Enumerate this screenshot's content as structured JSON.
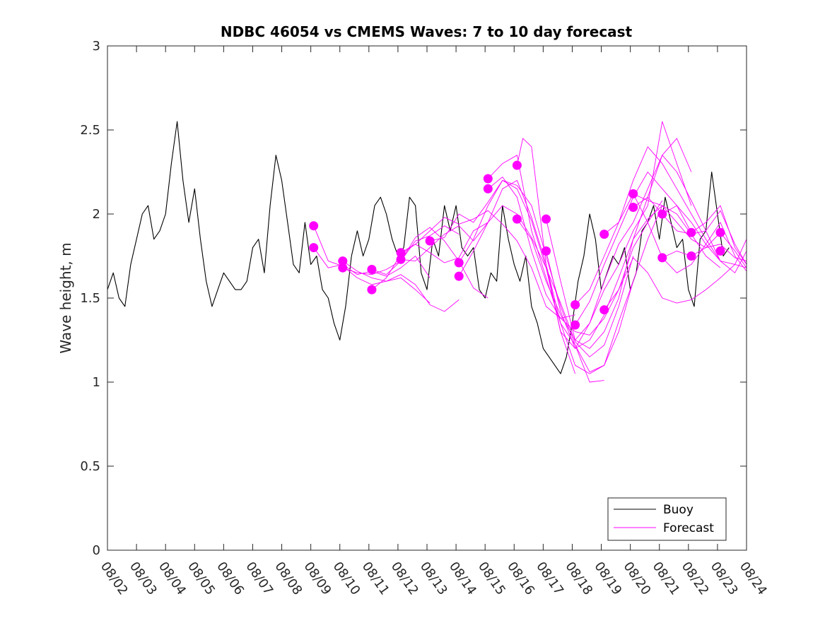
{
  "chart_data": {
    "type": "line",
    "title": "NDBC 46054 vs CMEMS Waves: 7 to 10 day forecast",
    "xlabel": "",
    "ylabel": "Wave height, m",
    "x_unit": "days since 08/02",
    "xlim": [
      0,
      22
    ],
    "ylim": [
      0,
      3
    ],
    "xticks": [
      0,
      1,
      2,
      3,
      4,
      5,
      6,
      7,
      8,
      9,
      10,
      11,
      12,
      13,
      14,
      15,
      16,
      17,
      18,
      19,
      20,
      21,
      22
    ],
    "xtick_labels": [
      "08/02",
      "08/03",
      "08/04",
      "08/05",
      "08/06",
      "08/07",
      "08/08",
      "08/09",
      "08/10",
      "08/11",
      "08/12",
      "08/13",
      "08/14",
      "08/15",
      "08/16",
      "08/17",
      "08/18",
      "08/19",
      "08/20",
      "08/21",
      "08/22",
      "08/23",
      "08/24"
    ],
    "yticks": [
      0,
      0.5,
      1,
      1.5,
      2,
      2.5,
      3
    ],
    "ytick_labels": [
      "0",
      "0.5",
      "1",
      "1.5",
      "2",
      "2.5",
      "3"
    ],
    "grid": false,
    "legend_position": "bottom-right",
    "legend": [
      {
        "name": "Buoy",
        "color": "#000000"
      },
      {
        "name": "Forecast",
        "color": "#ff00ff"
      }
    ],
    "series": [
      {
        "name": "Buoy",
        "color": "#000000",
        "x": [
          0,
          0.2,
          0.4,
          0.6,
          0.8,
          1.0,
          1.2,
          1.4,
          1.6,
          1.8,
          2.0,
          2.2,
          2.4,
          2.6,
          2.8,
          3.0,
          3.2,
          3.4,
          3.6,
          3.8,
          4.0,
          4.2,
          4.4,
          4.6,
          4.8,
          5.0,
          5.2,
          5.4,
          5.6,
          5.8,
          6.0,
          6.2,
          6.4,
          6.6,
          6.8,
          7.0,
          7.2,
          7.4,
          7.6,
          7.8,
          8.0,
          8.2,
          8.4,
          8.6,
          8.8,
          9.0,
          9.2,
          9.4,
          9.6,
          9.8,
          10.0,
          10.2,
          10.4,
          10.6,
          10.8,
          11.0,
          11.2,
          11.4,
          11.6,
          11.8,
          12.0,
          12.2,
          12.4,
          12.6,
          12.8,
          13.0,
          13.2,
          13.4,
          13.6,
          13.8,
          14.0,
          14.2,
          14.4,
          14.6,
          14.8,
          15.0,
          15.2,
          15.4,
          15.6,
          15.8,
          16.0,
          16.2,
          16.4,
          16.6,
          16.8,
          17.0,
          17.2,
          17.4,
          17.6,
          17.8,
          18.0,
          18.2,
          18.4,
          18.6,
          18.8,
          19.0,
          19.2,
          19.4,
          19.6,
          19.8,
          20.0,
          20.2,
          20.4,
          20.6,
          20.8,
          21.0,
          21.2,
          21.4
        ],
        "y": [
          1.55,
          1.65,
          1.5,
          1.45,
          1.7,
          1.85,
          2.0,
          2.05,
          1.85,
          1.9,
          2.0,
          2.3,
          2.55,
          2.2,
          1.95,
          2.15,
          1.85,
          1.6,
          1.45,
          1.55,
          1.65,
          1.6,
          1.55,
          1.55,
          1.6,
          1.8,
          1.85,
          1.65,
          2.05,
          2.35,
          2.2,
          1.95,
          1.7,
          1.65,
          1.95,
          1.7,
          1.75,
          1.55,
          1.5,
          1.35,
          1.25,
          1.45,
          1.75,
          1.9,
          1.75,
          1.85,
          2.05,
          2.1,
          2.0,
          1.85,
          1.75,
          1.8,
          2.1,
          2.05,
          1.65,
          1.55,
          1.85,
          1.75,
          2.05,
          1.9,
          2.05,
          1.8,
          1.75,
          1.8,
          1.55,
          1.5,
          1.65,
          1.6,
          2.05,
          1.85,
          1.7,
          1.6,
          1.75,
          1.45,
          1.35,
          1.2,
          1.15,
          1.1,
          1.05,
          1.15,
          1.35,
          1.6,
          1.75,
          2.0,
          1.85,
          1.55,
          1.65,
          1.75,
          1.7,
          1.8,
          1.55,
          1.65,
          1.9,
          1.95,
          2.05,
          1.85,
          2.1,
          1.95,
          1.8,
          1.85,
          1.55,
          1.45,
          1.85,
          1.9,
          2.25,
          2.0,
          1.75,
          1.8
        ]
      },
      {
        "name": "Forecast",
        "color": "#ff00ff",
        "x": [
          7.1,
          7.6,
          8.1,
          8.6,
          9.1,
          9.6,
          10.1,
          10.6,
          11.1
        ],
        "y": [
          1.93,
          1.72,
          1.69,
          1.62,
          1.58,
          1.6,
          1.62,
          1.55,
          1.47
        ]
      },
      {
        "name": "Forecast",
        "color": "#ff00ff",
        "x": [
          7.1,
          7.6,
          8.1,
          8.6,
          9.1,
          9.6,
          10.1,
          10.6,
          11.1
        ],
        "y": [
          1.8,
          1.68,
          1.7,
          1.64,
          1.66,
          1.63,
          1.68,
          1.75,
          1.62
        ]
      },
      {
        "name": "Forecast",
        "color": "#ff00ff",
        "x": [
          8.1,
          8.6,
          9.1,
          9.6,
          10.1,
          10.6,
          11.1,
          11.6,
          12.1
        ],
        "y": [
          1.72,
          1.66,
          1.62,
          1.6,
          1.64,
          1.58,
          1.46,
          1.42,
          1.49
        ]
      },
      {
        "name": "Forecast",
        "color": "#ff00ff",
        "x": [
          8.1,
          8.6,
          9.1,
          9.6,
          10.1,
          10.6,
          11.1,
          11.6,
          12.1
        ],
        "y": [
          1.68,
          1.65,
          1.64,
          1.67,
          1.72,
          1.84,
          1.87,
          1.93,
          1.88
        ]
      },
      {
        "name": "Forecast",
        "color": "#ff00ff",
        "x": [
          9.1,
          9.6,
          10.1,
          10.6,
          11.1,
          11.6,
          12.1,
          12.6,
          13.1
        ],
        "y": [
          1.67,
          1.64,
          1.72,
          1.86,
          1.92,
          1.84,
          1.72,
          1.56,
          1.5
        ]
      },
      {
        "name": "Forecast",
        "color": "#ff00ff",
        "x": [
          9.1,
          9.6,
          10.1,
          10.6,
          11.1,
          11.6,
          12.1,
          12.6,
          13.1
        ],
        "y": [
          1.55,
          1.62,
          1.76,
          1.82,
          1.77,
          1.71,
          1.74,
          1.9,
          1.95
        ]
      },
      {
        "name": "Forecast",
        "color": "#ff00ff",
        "x": [
          10.1,
          10.6,
          11.1,
          11.6,
          12.1,
          12.6,
          13.1,
          13.6,
          14.1,
          14.6,
          15.1,
          15.6,
          16.1
        ],
        "y": [
          1.77,
          1.82,
          1.9,
          1.98,
          1.94,
          1.97,
          2.02,
          1.94,
          1.84,
          1.68,
          1.45,
          1.38,
          1.4
        ]
      },
      {
        "name": "Forecast",
        "color": "#ff00ff",
        "x": [
          10.1,
          10.6,
          11.1,
          11.6,
          12.1,
          12.6,
          13.1,
          13.6,
          14.1,
          14.6,
          15.1,
          15.6,
          16.1
        ],
        "y": [
          1.73,
          1.72,
          1.8,
          1.88,
          1.93,
          1.84,
          1.95,
          2.05,
          2.0,
          1.86,
          1.68,
          1.3,
          1.05
        ]
      },
      {
        "name": "Forecast",
        "color": "#ff00ff",
        "x": [
          11.1,
          11.6,
          12.1,
          12.6,
          13.1,
          13.6,
          14.1,
          14.6,
          15.1,
          15.6,
          16.1,
          16.6,
          17.1
        ],
        "y": [
          1.84,
          1.86,
          2.0,
          1.95,
          2.07,
          2.2,
          2.17,
          2.05,
          1.75,
          1.45,
          1.22,
          1.0,
          1.01
        ]
      },
      {
        "name": "Forecast",
        "color": "#ff00ff",
        "x": [
          12.1,
          12.6,
          13.1,
          13.6,
          14.1,
          14.6,
          15.1,
          15.6,
          16.1,
          16.6,
          17.1,
          17.6,
          18.1
        ],
        "y": [
          1.63,
          1.78,
          1.95,
          2.15,
          2.2,
          1.98,
          1.7,
          1.35,
          1.1,
          1.05,
          1.1,
          1.3,
          1.6
        ]
      },
      {
        "name": "Forecast",
        "color": "#ff00ff",
        "x": [
          12.1,
          12.6,
          13.1,
          13.6,
          14.1,
          14.6,
          15.1,
          15.6,
          16.1,
          16.6,
          17.1,
          17.6,
          18.1
        ],
        "y": [
          1.71,
          1.85,
          2.05,
          2.2,
          2.15,
          1.96,
          1.68,
          1.47,
          1.24,
          1.15,
          1.22,
          1.45,
          1.75
        ]
      },
      {
        "name": "Forecast",
        "color": "#ff00ff",
        "x": [
          13.1,
          13.6,
          14.1,
          14.6,
          15.1,
          15.6,
          16.1,
          16.6,
          17.1,
          17.6,
          18.1,
          18.6,
          19.1
        ],
        "y": [
          2.21,
          2.3,
          2.35,
          1.9,
          1.62,
          1.35,
          1.22,
          1.06,
          1.1,
          1.36,
          1.6,
          1.85,
          2.05
        ]
      },
      {
        "name": "Forecast",
        "color": "#ff00ff",
        "x": [
          13.1,
          13.6,
          14.1,
          14.6,
          15.1,
          15.6,
          16.1,
          16.6,
          17.1,
          17.6,
          18.1,
          18.6,
          19.1
        ],
        "y": [
          2.15,
          2.22,
          2.1,
          1.78,
          1.52,
          1.38,
          1.3,
          1.28,
          1.38,
          1.55,
          1.8,
          1.95,
          2.08
        ]
      },
      {
        "name": "Forecast",
        "color": "#ff00ff",
        "x": [
          14.1,
          14.3,
          14.6,
          15.1,
          15.6,
          16.1,
          16.6,
          17.1,
          17.6,
          18.1,
          18.6,
          19.1,
          19.6,
          20.1
        ],
        "y": [
          2.29,
          2.45,
          2.4,
          1.7,
          1.3,
          1.2,
          1.35,
          1.6,
          1.82,
          1.95,
          2.15,
          2.35,
          2.45,
          2.25
        ]
      },
      {
        "name": "Forecast",
        "color": "#ff00ff",
        "x": [
          14.1,
          14.6,
          15.1,
          15.6,
          16.1,
          16.6,
          17.1,
          17.6,
          18.1,
          18.6,
          19.1,
          19.6,
          20.1
        ],
        "y": [
          1.97,
          1.85,
          1.6,
          1.4,
          1.25,
          1.35,
          1.55,
          1.7,
          1.9,
          2.05,
          2.55,
          2.3,
          2.05
        ]
      },
      {
        "name": "Forecast",
        "color": "#ff00ff",
        "x": [
          15.1,
          15.6,
          16.1,
          16.6,
          17.1,
          17.6,
          18.1,
          18.6,
          19.1,
          19.6,
          20.1,
          20.6,
          21.1
        ],
        "y": [
          1.97,
          1.6,
          1.25,
          1.2,
          1.3,
          1.5,
          1.85,
          2.1,
          2.35,
          2.25,
          2.08,
          1.9,
          1.72
        ]
      },
      {
        "name": "Forecast",
        "color": "#ff00ff",
        "x": [
          15.1,
          15.6,
          16.1,
          16.6,
          17.1,
          17.6,
          18.1,
          18.6,
          19.1,
          19.6,
          20.1,
          20.6,
          21.1
        ],
        "y": [
          1.78,
          1.42,
          1.2,
          1.25,
          1.4,
          1.62,
          1.85,
          1.97,
          2.05,
          2.0,
          1.88,
          1.75,
          1.68
        ]
      },
      {
        "name": "Forecast",
        "color": "#ff00ff",
        "x": [
          16.1,
          16.6,
          17.1,
          17.6,
          18.1,
          18.6,
          19.1,
          19.6,
          20.1,
          20.6,
          21.1,
          21.6,
          22.0
        ],
        "y": [
          1.46,
          1.55,
          1.75,
          1.95,
          2.2,
          2.4,
          2.3,
          2.15,
          2.0,
          1.85,
          1.72,
          1.65,
          1.78
        ]
      },
      {
        "name": "Forecast",
        "color": "#ff00ff",
        "x": [
          16.1,
          16.6,
          17.1,
          17.6,
          18.1,
          18.6,
          19.1,
          19.6,
          20.1,
          20.6,
          21.1,
          21.6,
          22.0
        ],
        "y": [
          1.34,
          1.48,
          1.7,
          1.9,
          2.1,
          2.25,
          2.15,
          2.05,
          1.95,
          1.82,
          1.72,
          1.7,
          1.85
        ]
      },
      {
        "name": "Forecast",
        "color": "#ff00ff",
        "x": [
          17.1,
          17.6,
          18.1,
          18.6,
          19.1,
          19.6,
          20.1,
          20.6,
          21.1,
          21.6,
          22.0
        ],
        "y": [
          1.88,
          1.95,
          2.12,
          2.08,
          2.05,
          1.95,
          1.85,
          1.8,
          1.82,
          1.74,
          1.72
        ]
      },
      {
        "name": "Forecast",
        "color": "#ff00ff",
        "x": [
          17.1,
          17.6,
          18.1,
          18.6,
          19.1,
          19.6,
          20.1,
          20.6,
          21.1,
          21.6,
          22.0
        ],
        "y": [
          1.43,
          1.55,
          1.74,
          1.65,
          1.5,
          1.47,
          1.49,
          1.55,
          1.62,
          1.7,
          1.68
        ]
      },
      {
        "name": "Forecast",
        "color": "#ff00ff",
        "x": [
          18.1,
          18.6,
          19.1,
          19.6,
          20.1,
          20.6,
          21.1,
          21.6,
          22.0
        ],
        "y": [
          2.12,
          1.95,
          1.74,
          1.65,
          1.7,
          1.82,
          1.95,
          1.75,
          1.66
        ]
      },
      {
        "name": "Forecast",
        "color": "#ff00ff",
        "x": [
          18.1,
          18.6,
          19.1,
          19.6,
          20.1,
          20.6,
          21.1,
          21.6,
          22.0
        ],
        "y": [
          2.04,
          2.1,
          2.0,
          1.9,
          1.88,
          1.9,
          2.02,
          1.82,
          1.7
        ]
      },
      {
        "name": "Forecast",
        "color": "#ff00ff",
        "x": [
          19.1,
          19.6,
          20.1,
          20.6,
          21.1,
          21.6,
          22.0
        ],
        "y": [
          2.0,
          2.05,
          1.89,
          1.95,
          2.05,
          1.8,
          1.7
        ]
      },
      {
        "name": "Forecast",
        "color": "#ff00ff",
        "x": [
          19.1,
          19.6,
          20.1,
          20.6,
          21.1,
          21.6,
          22.0
        ],
        "y": [
          1.74,
          1.78,
          1.75,
          1.8,
          1.89,
          1.78,
          1.68
        ]
      }
    ],
    "markers": {
      "name": "Forecast initial points",
      "color": "#ff00ff",
      "points": [
        [
          7.1,
          1.93
        ],
        [
          7.1,
          1.8
        ],
        [
          8.1,
          1.72
        ],
        [
          8.1,
          1.68
        ],
        [
          9.1,
          1.67
        ],
        [
          9.1,
          1.55
        ],
        [
          10.1,
          1.77
        ],
        [
          10.1,
          1.73
        ],
        [
          11.1,
          1.84
        ],
        [
          12.1,
          1.71
        ],
        [
          12.1,
          1.63
        ],
        [
          13.1,
          2.21
        ],
        [
          13.1,
          2.15
        ],
        [
          14.1,
          2.29
        ],
        [
          14.1,
          1.97
        ],
        [
          15.1,
          1.97
        ],
        [
          15.1,
          1.78
        ],
        [
          16.1,
          1.46
        ],
        [
          16.1,
          1.34
        ],
        [
          17.1,
          1.88
        ],
        [
          17.1,
          1.43
        ],
        [
          18.1,
          2.12
        ],
        [
          18.1,
          2.04
        ],
        [
          19.1,
          2.0
        ],
        [
          19.1,
          1.74
        ],
        [
          20.1,
          1.89
        ],
        [
          20.1,
          1.75
        ],
        [
          21.1,
          1.89
        ],
        [
          21.1,
          1.78
        ]
      ]
    }
  }
}
